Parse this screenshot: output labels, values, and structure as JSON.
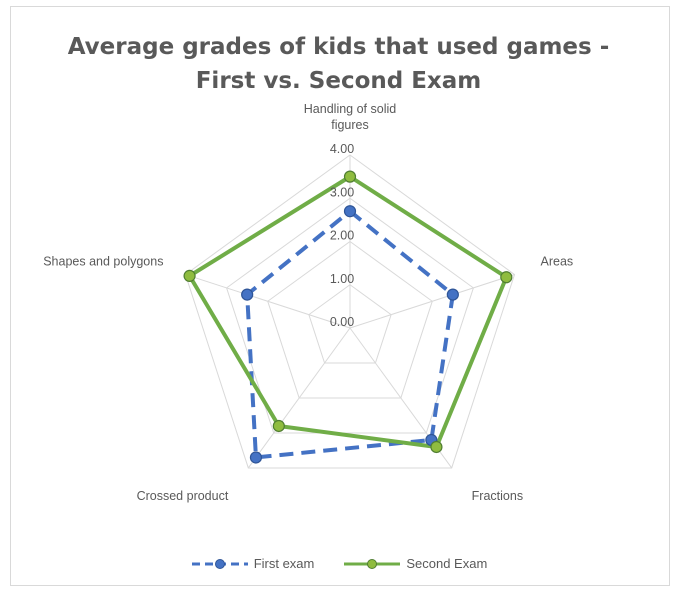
{
  "chart_data": {
    "type": "radar",
    "title_lines": [
      "Average grades of kids that used games -",
      "First vs. Second Exam"
    ],
    "categories": [
      "Handling of solid figures",
      "Areas",
      "Fractions",
      "Crossed product",
      "Shapes and polygons"
    ],
    "category_label_lines": [
      [
        "Handling of solid",
        "figures"
      ],
      [
        "Areas"
      ],
      [
        "Fractions"
      ],
      [
        "Crossed product"
      ],
      [
        "Shapes and polygons"
      ]
    ],
    "axis_range": [
      0,
      4
    ],
    "tick_labels": [
      "0.00",
      "1.00",
      "2.00",
      "3.00",
      "4.00"
    ],
    "grid": true,
    "legend_position": "bottom",
    "series": [
      {
        "name": "First exam",
        "values": [
          2.7,
          2.5,
          3.2,
          3.7,
          2.5
        ],
        "color": "#4472c4",
        "line_style": "dashed"
      },
      {
        "name": "Second Exam",
        "values": [
          3.5,
          3.8,
          3.4,
          2.8,
          3.9
        ],
        "color": "#70ad47",
        "line_style": "solid"
      }
    ]
  }
}
